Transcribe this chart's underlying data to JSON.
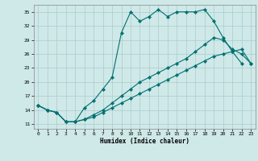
{
  "xlabel": "Humidex (Indice chaleur)",
  "background_color": "#cfe8e8",
  "grid_color": "#aacccc",
  "line_color": "#007070",
  "xlim": [
    -0.5,
    23.5
  ],
  "ylim": [
    10.0,
    36.5
  ],
  "yticks": [
    11,
    14,
    17,
    20,
    23,
    26,
    29,
    32,
    35
  ],
  "xticks": [
    0,
    1,
    2,
    3,
    4,
    5,
    6,
    7,
    8,
    9,
    10,
    11,
    12,
    13,
    14,
    15,
    16,
    17,
    18,
    19,
    20,
    21,
    22,
    23
  ],
  "line1_x": [
    0,
    1,
    2,
    3,
    4,
    5,
    6,
    7,
    8,
    9,
    10,
    11,
    12,
    13,
    14,
    15,
    16,
    17,
    18,
    19,
    20,
    21,
    22
  ],
  "line1_y": [
    15,
    14,
    13.5,
    11.5,
    11.5,
    14.5,
    16,
    18.5,
    21,
    30.5,
    35,
    33,
    34,
    35.5,
    34,
    35,
    35,
    35,
    35.5,
    33,
    29.5,
    26.5,
    24
  ],
  "line2_x": [
    0,
    1,
    2,
    3,
    4,
    5,
    6,
    7,
    8,
    9,
    10,
    11,
    12,
    13,
    14,
    15,
    16,
    17,
    18,
    19,
    20,
    21,
    22,
    23
  ],
  "line2_y": [
    15,
    14,
    13.5,
    11.5,
    11.5,
    12,
    13,
    14,
    15.5,
    17,
    18.5,
    20,
    21,
    22,
    23,
    24,
    25,
    26.5,
    28,
    29.5,
    29,
    27,
    26,
    24
  ],
  "line3_x": [
    0,
    1,
    2,
    3,
    4,
    5,
    6,
    7,
    8,
    9,
    10,
    11,
    12,
    13,
    14,
    15,
    16,
    17,
    18,
    19,
    20,
    21,
    22,
    23
  ],
  "line3_y": [
    15,
    14,
    13.5,
    11.5,
    11.5,
    12,
    12.5,
    13.5,
    14.5,
    15.5,
    16.5,
    17.5,
    18.5,
    19.5,
    20.5,
    21.5,
    22.5,
    23.5,
    24.5,
    25.5,
    26,
    26.5,
    27,
    24
  ]
}
